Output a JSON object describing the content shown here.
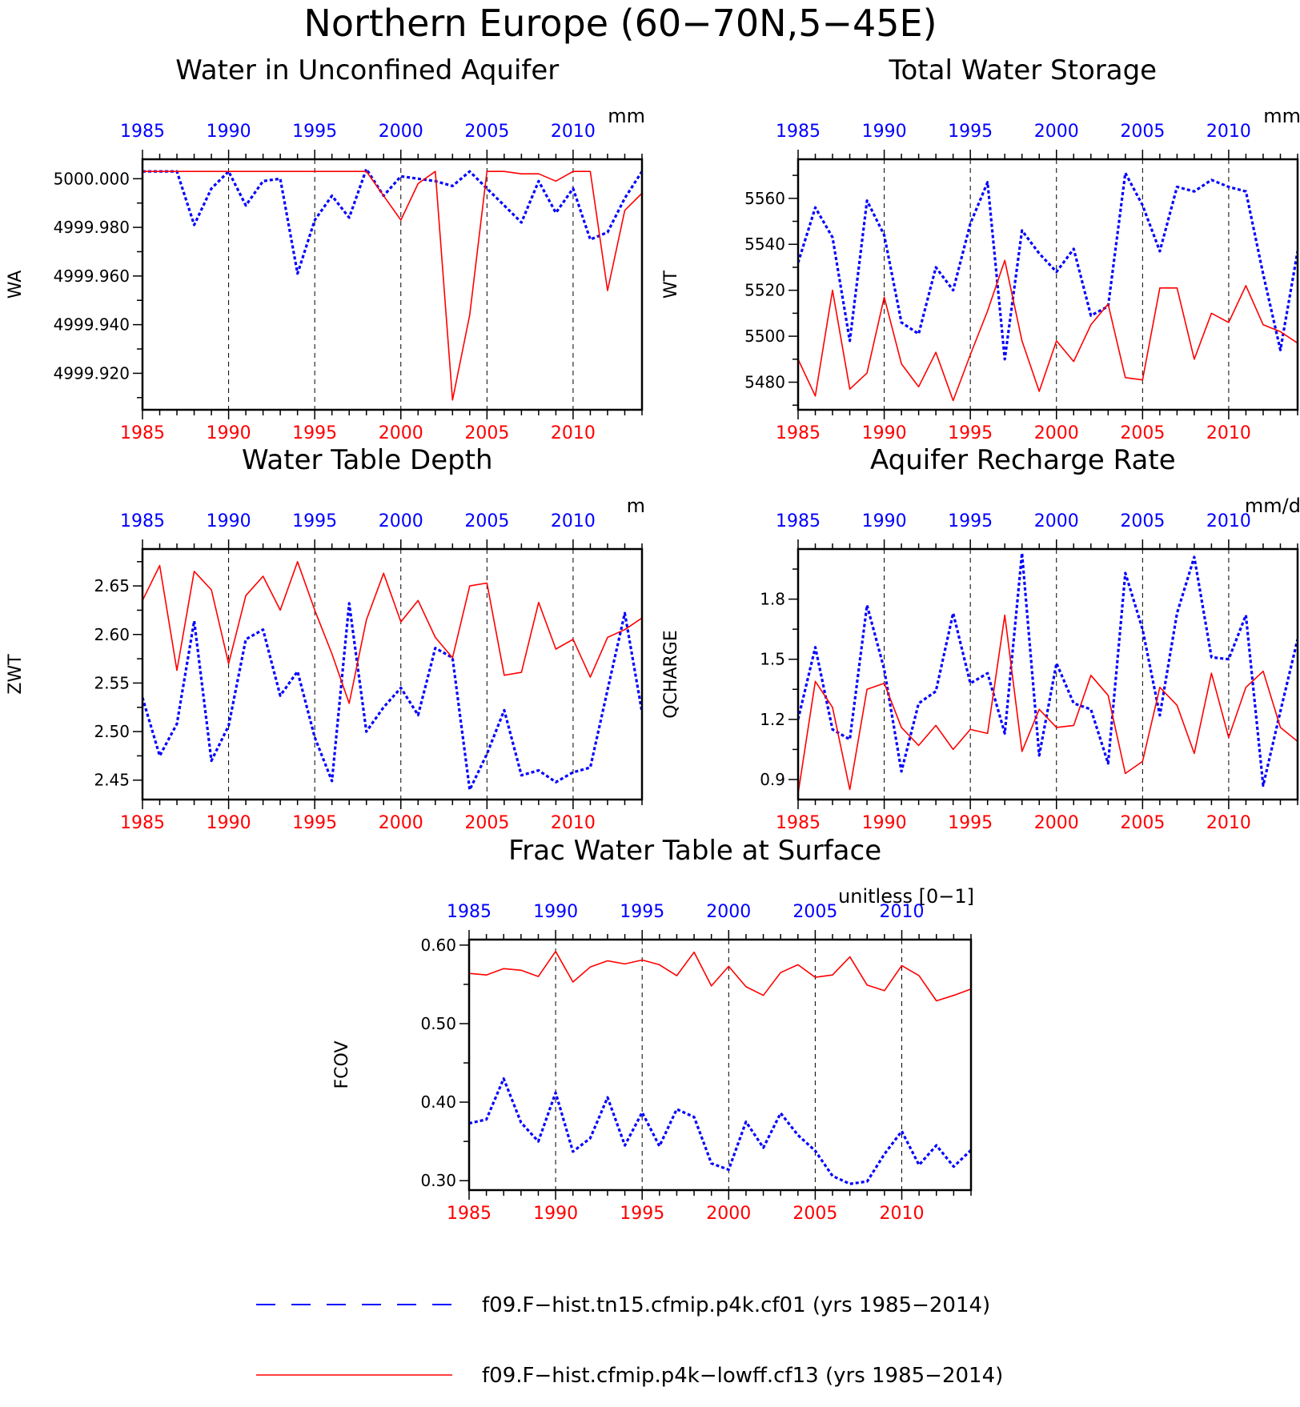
{
  "figure": {
    "title": "Northern Europe (60−70N,5−45E)"
  },
  "colors": {
    "series_blue": "#0000ff",
    "series_red": "#ff0000"
  },
  "legend": [
    {
      "label": "f09.F−hist.tn15.cfmip.p4k.cf01 (yrs 1985−2014)",
      "color": "#0000ff",
      "style": "dashed"
    },
    {
      "label": "f09.F−hist.cfmip.p4k−lowff.cf13 (yrs 1985−2014)",
      "color": "#ff0000",
      "style": "solid"
    }
  ],
  "chart_data": [
    {
      "type": "line",
      "title": "Water in Unconfined Aquifer",
      "units": "mm",
      "ylabel": "WA",
      "xlim": [
        1985,
        2014
      ],
      "ylim": [
        4999.905,
        5000.008
      ],
      "yticks": [
        4999.92,
        4999.94,
        4999.96,
        4999.98,
        5000.0
      ],
      "ytick_labels": [
        "4999.920",
        "4999.940",
        "4999.960",
        "4999.980",
        "5000.000"
      ],
      "x": [
        1985,
        1986,
        1987,
        1988,
        1989,
        1990,
        1991,
        1992,
        1993,
        1994,
        1995,
        1996,
        1997,
        1998,
        1999,
        2000,
        2001,
        2002,
        2003,
        2004,
        2005,
        2006,
        2007,
        2008,
        2009,
        2010,
        2011,
        2012,
        2013,
        2014
      ],
      "series": [
        {
          "color": "#0000ff",
          "dashed": true,
          "values": [
            5000.003,
            5000.003,
            5000.003,
            4999.981,
            4999.996,
            5000.003,
            4999.989,
            4999.999,
            5000.0,
            4999.961,
            4999.983,
            4999.993,
            4999.984,
            5000.004,
            4999.993,
            5000.001,
            5000.0,
            4999.999,
            4999.997,
            5000.003,
            4999.996,
            4999.989,
            4999.982,
            4999.999,
            4999.986,
            4999.996,
            4999.975,
            4999.978,
            4999.992,
            5000.003
          ]
        },
        {
          "color": "#ff0000",
          "dashed": false,
          "values": [
            5000.003,
            5000.003,
            5000.003,
            5000.003,
            5000.003,
            5000.003,
            5000.003,
            5000.003,
            5000.003,
            5000.003,
            5000.003,
            5000.003,
            5000.003,
            5000.003,
            4999.993,
            4999.983,
            4999.998,
            5000.003,
            4999.909,
            4999.944,
            5000.003,
            5000.003,
            5000.002,
            5000.002,
            4999.999,
            5000.003,
            5000.003,
            4999.954,
            4999.987,
            4999.994
          ]
        }
      ]
    },
    {
      "type": "line",
      "title": "Total Water Storage",
      "units": "mm",
      "ylabel": "WT",
      "xlim": [
        1985,
        2014
      ],
      "ylim": [
        5468,
        5577
      ],
      "yticks": [
        5480,
        5500,
        5520,
        5540,
        5560
      ],
      "ytick_labels": [
        "5480",
        "5500",
        "5520",
        "5540",
        "5560"
      ],
      "x": [
        1985,
        1986,
        1987,
        1988,
        1989,
        1990,
        1991,
        1992,
        1993,
        1994,
        1995,
        1996,
        1997,
        1998,
        1999,
        2000,
        2001,
        2002,
        2003,
        2004,
        2005,
        2006,
        2007,
        2008,
        2009,
        2010,
        2011,
        2012,
        2013,
        2014
      ],
      "series": [
        {
          "color": "#0000ff",
          "dashed": true,
          "values": [
            5532,
            5556,
            5543,
            5498,
            5559,
            5544,
            5506,
            5501,
            5530,
            5520,
            5549,
            5567,
            5490,
            5546,
            5536,
            5528,
            5538,
            5509,
            5513,
            5571,
            5557,
            5537,
            5565,
            5563,
            5568,
            5565,
            5563,
            5527,
            5494,
            5537
          ]
        },
        {
          "color": "#ff0000",
          "dashed": false,
          "values": [
            5490,
            5474,
            5520,
            5477,
            5484,
            5517,
            5488,
            5478,
            5493,
            5472,
            5492,
            5511,
            5533,
            5498,
            5476,
            5498,
            5489,
            5505,
            5514,
            5482,
            5481,
            5521,
            5521,
            5490,
            5510,
            5506,
            5522,
            5505,
            5502,
            5497
          ]
        }
      ]
    },
    {
      "type": "line",
      "title": "Water Table Depth",
      "units": "m",
      "ylabel": "ZWT",
      "xlim": [
        1985,
        2014
      ],
      "ylim": [
        2.43,
        2.688
      ],
      "yticks": [
        2.45,
        2.5,
        2.55,
        2.6,
        2.65
      ],
      "ytick_labels": [
        "2.45",
        "2.50",
        "2.55",
        "2.60",
        "2.65"
      ],
      "x": [
        1985,
        1986,
        1987,
        1988,
        1989,
        1990,
        1991,
        1992,
        1993,
        1994,
        1995,
        1996,
        1997,
        1998,
        1999,
        2000,
        2001,
        2002,
        2003,
        2004,
        2005,
        2006,
        2007,
        2008,
        2009,
        2010,
        2011,
        2012,
        2013,
        2014
      ],
      "series": [
        {
          "color": "#0000ff",
          "dashed": true,
          "values": [
            2.535,
            2.475,
            2.508,
            2.614,
            2.47,
            2.506,
            2.595,
            2.605,
            2.537,
            2.562,
            2.494,
            2.449,
            2.632,
            2.5,
            2.525,
            2.545,
            2.517,
            2.586,
            2.576,
            2.44,
            2.477,
            2.522,
            2.455,
            2.46,
            2.448,
            2.458,
            2.463,
            2.543,
            2.622,
            2.52
          ]
        },
        {
          "color": "#ff0000",
          "dashed": false,
          "values": [
            2.635,
            2.671,
            2.563,
            2.665,
            2.646,
            2.57,
            2.64,
            2.66,
            2.625,
            2.675,
            2.625,
            2.58,
            2.529,
            2.615,
            2.663,
            2.613,
            2.635,
            2.597,
            2.576,
            2.65,
            2.653,
            2.558,
            2.561,
            2.633,
            2.585,
            2.595,
            2.556,
            2.597,
            2.605,
            2.617
          ]
        }
      ]
    },
    {
      "type": "line",
      "title": "Aquifer Recharge Rate",
      "units": "mm/d",
      "ylabel": "QCHARGE",
      "xlim": [
        1985,
        2014
      ],
      "ylim": [
        0.8,
        2.05
      ],
      "yticks": [
        0.9,
        1.2,
        1.5,
        1.8
      ],
      "ytick_labels": [
        "0.9",
        "1.2",
        "1.5",
        "1.8"
      ],
      "x": [
        1985,
        1986,
        1987,
        1988,
        1989,
        1990,
        1991,
        1992,
        1993,
        1994,
        1995,
        1996,
        1997,
        1998,
        1999,
        2000,
        2001,
        2002,
        2003,
        2004,
        2005,
        2006,
        2007,
        2008,
        2009,
        2010,
        2011,
        2012,
        2013,
        2014
      ],
      "series": [
        {
          "color": "#0000ff",
          "dashed": true,
          "values": [
            1.2,
            1.56,
            1.15,
            1.1,
            1.77,
            1.45,
            0.94,
            1.28,
            1.34,
            1.73,
            1.38,
            1.43,
            1.13,
            2.03,
            1.02,
            1.48,
            1.28,
            1.25,
            0.98,
            1.93,
            1.65,
            1.22,
            1.73,
            2.01,
            1.51,
            1.5,
            1.72,
            0.87,
            1.24,
            1.6
          ]
        },
        {
          "color": "#ff0000",
          "dashed": false,
          "values": [
            0.83,
            1.39,
            1.26,
            0.85,
            1.35,
            1.38,
            1.16,
            1.07,
            1.17,
            1.05,
            1.15,
            1.13,
            1.72,
            1.04,
            1.25,
            1.16,
            1.17,
            1.42,
            1.32,
            0.93,
            0.99,
            1.36,
            1.27,
            1.03,
            1.43,
            1.11,
            1.36,
            1.44,
            1.16,
            1.09
          ]
        }
      ]
    },
    {
      "type": "line",
      "title": "Frac Water Table at Surface",
      "units": "unitless [0−1]",
      "ylabel": "FCOV",
      "xlim": [
        1985,
        2014
      ],
      "ylim": [
        0.288,
        0.607
      ],
      "yticks": [
        0.3,
        0.4,
        0.5,
        0.6
      ],
      "ytick_labels": [
        "0.30",
        "0.40",
        "0.50",
        "0.60"
      ],
      "x": [
        1985,
        1986,
        1987,
        1988,
        1989,
        1990,
        1991,
        1992,
        1993,
        1994,
        1995,
        1996,
        1997,
        1998,
        1999,
        2000,
        2001,
        2002,
        2003,
        2004,
        2005,
        2006,
        2007,
        2008,
        2009,
        2010,
        2011,
        2012,
        2013,
        2014
      ],
      "series": [
        {
          "color": "#0000ff",
          "dashed": true,
          "values": [
            0.373,
            0.378,
            0.43,
            0.374,
            0.35,
            0.412,
            0.337,
            0.354,
            0.406,
            0.345,
            0.387,
            0.344,
            0.391,
            0.381,
            0.322,
            0.314,
            0.375,
            0.342,
            0.386,
            0.358,
            0.338,
            0.306,
            0.296,
            0.299,
            0.334,
            0.363,
            0.32,
            0.345,
            0.318,
            0.339
          ]
        },
        {
          "color": "#ff0000",
          "dashed": false,
          "values": [
            0.564,
            0.562,
            0.57,
            0.568,
            0.56,
            0.592,
            0.553,
            0.572,
            0.58,
            0.576,
            0.581,
            0.575,
            0.561,
            0.591,
            0.548,
            0.573,
            0.547,
            0.536,
            0.565,
            0.575,
            0.559,
            0.562,
            0.585,
            0.549,
            0.542,
            0.574,
            0.561,
            0.529,
            0.536,
            0.544
          ]
        }
      ]
    }
  ]
}
